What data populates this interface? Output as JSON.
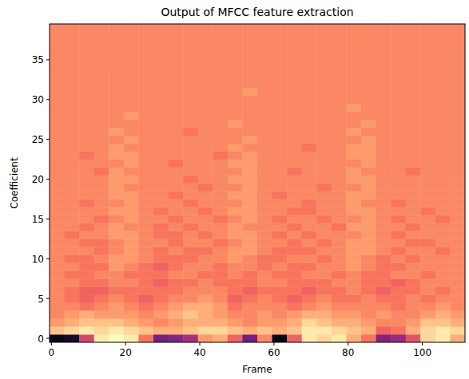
{
  "chart_data": {
    "type": "heatmap",
    "title": "Output of MFCC feature extraction",
    "x_label": "Frame",
    "y_label": "Coefficient",
    "xlim": [
      -0.5,
      111.5
    ],
    "ylim": [
      -0.5,
      39.5
    ],
    "xticks": [
      0,
      20,
      40,
      60,
      80,
      100
    ],
    "yticks": [
      0,
      5,
      10,
      15,
      20,
      25,
      30,
      35
    ],
    "color": "magma",
    "color_range": [
      -14,
      10
    ],
    "x_edges": [
      -0.5,
      3.5,
      7.5,
      11.5,
      15.5,
      19.5,
      23.5,
      27.5,
      31.5,
      35.5,
      39.5,
      43.5,
      47.5,
      51.5,
      55.5,
      59.5,
      63.5,
      67.5,
      71.5,
      75.5,
      79.5,
      83.5,
      87.5,
      91.5,
      95.5,
      99.5,
      103.5,
      107.5,
      111.5
    ],
    "cells": [
      [
        -13,
        -12,
        0,
        9,
        10,
        9,
        3,
        -6,
        -5,
        -3,
        5,
        6,
        2,
        -6,
        4,
        -13,
        2,
        9,
        8,
        9,
        6,
        3,
        -5,
        -4,
        1,
        8,
        9,
        6
      ],
      [
        7,
        8,
        9,
        8,
        9,
        8,
        7,
        6,
        6,
        7,
        8,
        8,
        7,
        6,
        7,
        6,
        7,
        9,
        9,
        8,
        7,
        6,
        2,
        3,
        6,
        8,
        9,
        8
      ],
      [
        5,
        6,
        7,
        7,
        7,
        6,
        5,
        4,
        5,
        6,
        6,
        6,
        5,
        4,
        5,
        5,
        6,
        8,
        7,
        6,
        6,
        5,
        4,
        4,
        5,
        7,
        7,
        6
      ],
      [
        4,
        5,
        6,
        5,
        5,
        5,
        4,
        5,
        6,
        7,
        6,
        5,
        4,
        4,
        5,
        4,
        5,
        6,
        6,
        5,
        5,
        4,
        5,
        4,
        4,
        5,
        6,
        5
      ],
      [
        4,
        4,
        3,
        4,
        5,
        4,
        3,
        4,
        5,
        6,
        6,
        5,
        3,
        4,
        4,
        4,
        3,
        4,
        5,
        4,
        4,
        4,
        4,
        3,
        4,
        4,
        5,
        4
      ],
      [
        4,
        3,
        2,
        3,
        4,
        3,
        2,
        3,
        4,
        4,
        5,
        4,
        2,
        3,
        4,
        3,
        2,
        3,
        4,
        3,
        3,
        4,
        3,
        3,
        4,
        3,
        4,
        4
      ],
      [
        4,
        3,
        2,
        2,
        3,
        3,
        3,
        3,
        3,
        4,
        4,
        4,
        3,
        2,
        3,
        3,
        3,
        2,
        3,
        3,
        4,
        3,
        2,
        3,
        3,
        4,
        3,
        4
      ],
      [
        4,
        4,
        3,
        3,
        4,
        4,
        3,
        2,
        3,
        3,
        4,
        3,
        3,
        3,
        4,
        4,
        3,
        3,
        3,
        4,
        4,
        3,
        3,
        2,
        3,
        4,
        4,
        4
      ],
      [
        4,
        3,
        3,
        4,
        4,
        3,
        3,
        3,
        4,
        4,
        3,
        3,
        4,
        3,
        4,
        3,
        3,
        4,
        4,
        3,
        4,
        3,
        3,
        4,
        4,
        3,
        4,
        4
      ],
      [
        4,
        4,
        3,
        3,
        5,
        4,
        3,
        2,
        3,
        4,
        4,
        3,
        4,
        4,
        3,
        4,
        3,
        3,
        4,
        4,
        5,
        4,
        3,
        3,
        4,
        4,
        4,
        4
      ],
      [
        4,
        3,
        3,
        4,
        5,
        5,
        4,
        3,
        3,
        3,
        4,
        4,
        5,
        4,
        3,
        3,
        4,
        4,
        3,
        4,
        5,
        4,
        3,
        4,
        3,
        4,
        4,
        4
      ],
      [
        4,
        4,
        4,
        3,
        4,
        5,
        4,
        3,
        4,
        3,
        3,
        4,
        5,
        5,
        4,
        3,
        3,
        3,
        4,
        4,
        5,
        5,
        4,
        3,
        4,
        4,
        3,
        4
      ],
      [
        4,
        4,
        3,
        3,
        4,
        5,
        4,
        4,
        3,
        4,
        4,
        3,
        4,
        5,
        4,
        4,
        3,
        4,
        3,
        4,
        5,
        5,
        4,
        4,
        3,
        3,
        4,
        4
      ],
      [
        4,
        3,
        4,
        4,
        5,
        5,
        4,
        3,
        3,
        4,
        3,
        4,
        5,
        5,
        4,
        3,
        4,
        3,
        4,
        4,
        4,
        5,
        4,
        3,
        4,
        4,
        4,
        4
      ],
      [
        4,
        4,
        3,
        4,
        5,
        4,
        4,
        3,
        4,
        3,
        4,
        4,
        5,
        4,
        4,
        4,
        3,
        4,
        4,
        3,
        5,
        5,
        4,
        4,
        3,
        4,
        4,
        4
      ],
      [
        4,
        4,
        4,
        3,
        4,
        5,
        4,
        4,
        3,
        4,
        4,
        3,
        4,
        5,
        4,
        3,
        4,
        4,
        3,
        4,
        4,
        5,
        4,
        3,
        4,
        4,
        3,
        4
      ],
      [
        4,
        4,
        4,
        4,
        5,
        5,
        4,
        3,
        4,
        4,
        3,
        4,
        5,
        5,
        4,
        4,
        3,
        3,
        4,
        4,
        5,
        5,
        4,
        4,
        4,
        3,
        4,
        4
      ],
      [
        4,
        4,
        3,
        4,
        4,
        5,
        4,
        4,
        4,
        3,
        4,
        4,
        4,
        5,
        4,
        4,
        4,
        3,
        4,
        4,
        5,
        4,
        4,
        3,
        4,
        4,
        4,
        4
      ],
      [
        4,
        4,
        4,
        4,
        5,
        5,
        4,
        4,
        3,
        4,
        4,
        4,
        5,
        5,
        4,
        3,
        4,
        4,
        4,
        4,
        5,
        5,
        4,
        4,
        4,
        4,
        4,
        4
      ],
      [
        4,
        4,
        4,
        4,
        5,
        4,
        4,
        4,
        4,
        4,
        3,
        4,
        4,
        5,
        4,
        4,
        4,
        4,
        3,
        4,
        4,
        5,
        4,
        4,
        4,
        4,
        4,
        4
      ],
      [
        4,
        4,
        4,
        4,
        5,
        5,
        4,
        4,
        4,
        3,
        4,
        4,
        5,
        5,
        4,
        4,
        4,
        4,
        4,
        4,
        5,
        5,
        4,
        4,
        4,
        4,
        4,
        4
      ],
      [
        4,
        4,
        4,
        3,
        5,
        4,
        4,
        4,
        4,
        4,
        4,
        4,
        4,
        5,
        4,
        4,
        3,
        4,
        4,
        4,
        5,
        4,
        4,
        4,
        3,
        4,
        4,
        4
      ],
      [
        4,
        4,
        4,
        4,
        4,
        5,
        4,
        4,
        3,
        4,
        4,
        4,
        5,
        5,
        4,
        4,
        4,
        4,
        4,
        4,
        4,
        5,
        4,
        4,
        4,
        4,
        4,
        4
      ],
      [
        4,
        4,
        3,
        4,
        5,
        5,
        4,
        4,
        4,
        4,
        4,
        3,
        4,
        5,
        4,
        4,
        4,
        4,
        4,
        4,
        5,
        5,
        4,
        4,
        4,
        4,
        4,
        4
      ],
      [
        4,
        4,
        4,
        4,
        5,
        4,
        4,
        4,
        4,
        4,
        4,
        4,
        5,
        4,
        4,
        4,
        4,
        3,
        4,
        4,
        5,
        5,
        4,
        4,
        4,
        4,
        4,
        4
      ],
      [
        4,
        4,
        4,
        4,
        4,
        5,
        4,
        4,
        4,
        4,
        4,
        4,
        4,
        5,
        4,
        4,
        4,
        4,
        4,
        4,
        4,
        5,
        4,
        4,
        4,
        4,
        4,
        4
      ],
      [
        4,
        4,
        4,
        4,
        5,
        4,
        4,
        4,
        4,
        3,
        4,
        4,
        4,
        4,
        4,
        4,
        4,
        4,
        4,
        4,
        5,
        4,
        4,
        4,
        4,
        4,
        4,
        4
      ],
      [
        4,
        4,
        4,
        4,
        4,
        4,
        4,
        4,
        4,
        4,
        4,
        4,
        5,
        4,
        4,
        4,
        4,
        4,
        4,
        4,
        4,
        5,
        4,
        4,
        4,
        4,
        4,
        4
      ],
      [
        4,
        4,
        4,
        4,
        4,
        5,
        4,
        4,
        4,
        4,
        4,
        4,
        4,
        4,
        4,
        4,
        4,
        4,
        4,
        4,
        4,
        4,
        4,
        4,
        4,
        4,
        4,
        4
      ],
      [
        4,
        4,
        4,
        4,
        4,
        4,
        4,
        4,
        4,
        4,
        4,
        4,
        4,
        4,
        4,
        4,
        4,
        4,
        4,
        4,
        5,
        4,
        4,
        4,
        4,
        4,
        4,
        4
      ],
      [
        4,
        4,
        4,
        4,
        4,
        4,
        4,
        4,
        4,
        4,
        4,
        4,
        4,
        4,
        4,
        4,
        4,
        4,
        4,
        4,
        4,
        4,
        4,
        4,
        4,
        4,
        4,
        4
      ],
      [
        4,
        4,
        4,
        4,
        4,
        4,
        4,
        4,
        4,
        4,
        4,
        4,
        4,
        5,
        4,
        4,
        4,
        4,
        4,
        4,
        4,
        4,
        4,
        4,
        4,
        4,
        4,
        4
      ],
      [
        4,
        4,
        4,
        4,
        4,
        4,
        4,
        4,
        4,
        4,
        4,
        4,
        4,
        4,
        4,
        4,
        4,
        4,
        4,
        4,
        4,
        4,
        4,
        4,
        4,
        4,
        4,
        4
      ],
      [
        4,
        4,
        4,
        4,
        4,
        4,
        4,
        4,
        4,
        4,
        4,
        4,
        4,
        4,
        4,
        4,
        4,
        4,
        4,
        4,
        4,
        4,
        4,
        4,
        4,
        4,
        4,
        4
      ],
      [
        4,
        4,
        4,
        4,
        4,
        4,
        4,
        4,
        4,
        4,
        4,
        4,
        4,
        4,
        4,
        4,
        4,
        4,
        4,
        4,
        4,
        4,
        4,
        4,
        4,
        4,
        4,
        4
      ],
      [
        4,
        4,
        4,
        4,
        4,
        4,
        4,
        4,
        4,
        4,
        4,
        4,
        4,
        4,
        4,
        4,
        4,
        4,
        4,
        4,
        4,
        4,
        4,
        4,
        4,
        4,
        4,
        4
      ],
      [
        4,
        4,
        4,
        4,
        4,
        4,
        4,
        4,
        4,
        4,
        4,
        4,
        4,
        4,
        4,
        4,
        4,
        4,
        4,
        4,
        4,
        4,
        4,
        4,
        4,
        4,
        4,
        4
      ],
      [
        4,
        4,
        4,
        4,
        4,
        4,
        4,
        4,
        4,
        4,
        4,
        4,
        4,
        4,
        4,
        4,
        4,
        4,
        4,
        4,
        4,
        4,
        4,
        4,
        4,
        4,
        4,
        4
      ],
      [
        4,
        4,
        4,
        4,
        4,
        4,
        4,
        4,
        4,
        4,
        4,
        4,
        4,
        4,
        4,
        4,
        4,
        4,
        4,
        4,
        4,
        4,
        4,
        4,
        4,
        4,
        4,
        4
      ],
      [
        4,
        4,
        4,
        4,
        4,
        4,
        4,
        4,
        4,
        4,
        4,
        4,
        4,
        4,
        4,
        4,
        4,
        4,
        4,
        4,
        4,
        4,
        4,
        4,
        4,
        4,
        4,
        4
      ]
    ]
  }
}
